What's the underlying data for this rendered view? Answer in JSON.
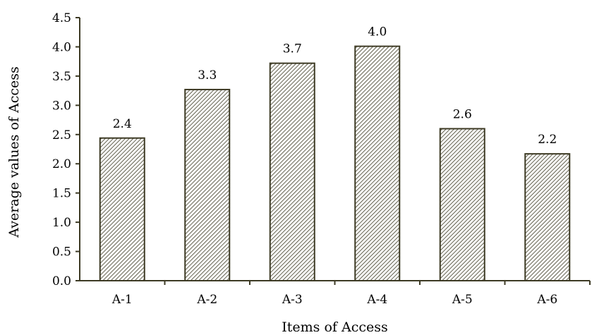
{
  "chart_data": {
    "type": "bar",
    "title": "",
    "xlabel": "Items of Access",
    "ylabel": "Average values of Access",
    "categories": [
      "A-1",
      "A-2",
      "A-3",
      "A-4",
      "A-5",
      "A-6"
    ],
    "values": [
      2.44,
      3.27,
      3.72,
      4.01,
      2.6,
      2.17
    ],
    "data_labels": [
      "2.4",
      "3.3",
      "3.7",
      "4.0",
      "2.6",
      "2.2"
    ],
    "ylim": [
      0,
      4.5
    ],
    "yticks": [
      "0.0",
      "0.5",
      "1.0",
      "1.5",
      "2.0",
      "2.5",
      "3.0",
      "3.5",
      "4.0",
      "4.5"
    ],
    "grid": false,
    "legend": "none",
    "bar_fill": "hatched",
    "colors": {
      "bar_stroke": "#3d3a24",
      "hatch": "#3d3a24",
      "axis": "#3d3a24"
    }
  }
}
